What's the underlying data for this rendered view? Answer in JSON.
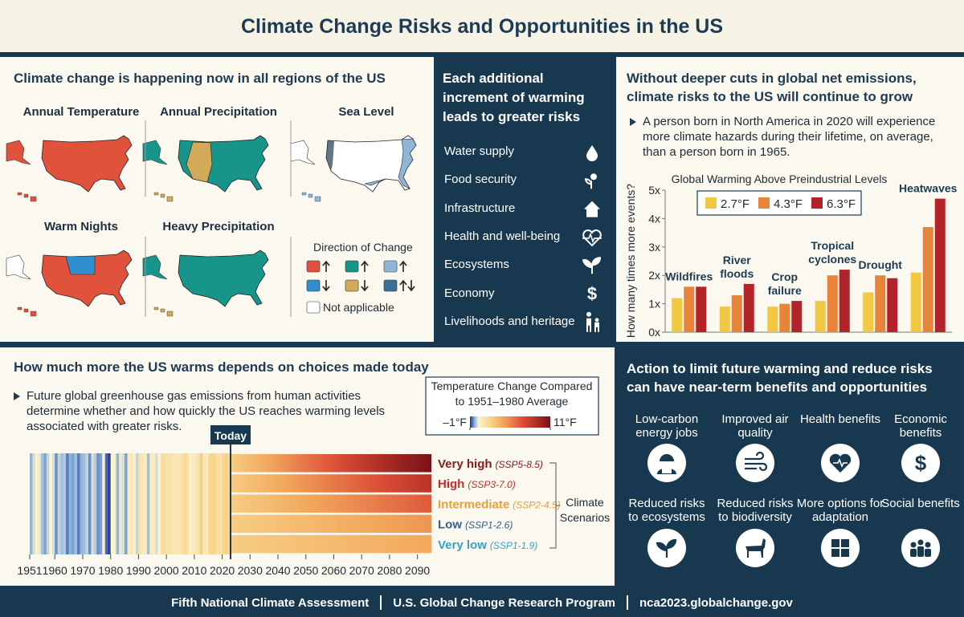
{
  "header": {
    "title": "Climate Change Risks and Opportunities in the US"
  },
  "regions_panel": {
    "heading": "Climate change is happening now in all regions of the US",
    "maps": [
      {
        "title": "Annual Temperature"
      },
      {
        "title": "Annual Precipitation"
      },
      {
        "title": "Sea Level"
      },
      {
        "title": "Warm Nights"
      },
      {
        "title": "Heavy Precipitation"
      }
    ],
    "legend": {
      "title": "Direction of Change",
      "not_applicable": "Not applicable"
    }
  },
  "risks_panel": {
    "heading": "Each additional increment of warming leads to greater risks",
    "items": [
      "Water supply",
      "Food security",
      "Infrastructure",
      "Health and well-being",
      "Ecosystems",
      "Economy",
      "Livelihoods and heritage"
    ]
  },
  "emissions_panel": {
    "heading": "Without deeper cuts in global net emissions, climate risks to the US will continue to grow",
    "bullet": "A person born in North America in 2020 will experience more climate hazards during their lifetime, on average, than a person born in 1965.",
    "chart": {
      "type": "bar",
      "title": "Global Warming Above Preindustrial Levels",
      "y_label": "How many times more events?",
      "categories": [
        "Wildfires",
        "River floods",
        "Crop failure",
        "Tropical cyclones",
        "Drought",
        "Heatwaves"
      ],
      "series": [
        {
          "name": "2.7°F",
          "color": "#f2c843",
          "values": [
            1.2,
            0.9,
            0.9,
            1.1,
            1.4,
            2.1
          ]
        },
        {
          "name": "4.3°F",
          "color": "#e8843a",
          "values": [
            1.6,
            1.3,
            1.0,
            2.0,
            2.0,
            3.7
          ]
        },
        {
          "name": "6.3°F",
          "color": "#b3232a",
          "values": [
            1.6,
            1.7,
            1.1,
            2.2,
            1.9,
            4.7
          ]
        }
      ],
      "ylim": [
        0,
        5
      ],
      "yticks": [
        {
          "value": 0,
          "label": "0x"
        },
        {
          "value": 1,
          "label": "1x"
        },
        {
          "value": 2,
          "label": "2x"
        },
        {
          "value": 3,
          "label": "3x"
        },
        {
          "value": 4,
          "label": "4x"
        },
        {
          "value": 5,
          "label": "5x"
        }
      ]
    }
  },
  "warming_panel": {
    "heading": "How much more the US warms depends on choices made today",
    "bullet": "Future global greenhouse gas emissions from human activities determine whether and how quickly the US reaches warming levels associated with greater risks.",
    "colorbar": {
      "title": "Temperature Change Compared to 1951–1980 Average",
      "ticks": [
        {
          "value": -1,
          "label": "–1°F"
        },
        {
          "value": 11,
          "label": "11°F"
        }
      ],
      "stops": [
        {
          "value": -1,
          "color": "#1b2f8a"
        },
        {
          "value": -0.3,
          "color": "#8db6de"
        },
        {
          "value": 0.3,
          "color": "#fbf3d2"
        },
        {
          "value": 2,
          "color": "#f7d48a"
        },
        {
          "value": 4,
          "color": "#f2a65a"
        },
        {
          "value": 7,
          "color": "#db4a35"
        },
        {
          "value": 11,
          "color": "#7a1016"
        }
      ]
    },
    "strip": {
      "x": [
        1951,
        1952,
        1953,
        1954,
        1955,
        1956,
        1957,
        1958,
        1959,
        1960,
        1961,
        1962,
        1963,
        1964,
        1965,
        1966,
        1967,
        1968,
        1969,
        1970,
        1971,
        1972,
        1973,
        1974,
        1975,
        1976,
        1977,
        1978,
        1979,
        1980,
        1981,
        1982,
        1983,
        1984,
        1985,
        1986,
        1987,
        1988,
        1989,
        1990,
        1991,
        1992,
        1993,
        1994,
        1995,
        1996,
        1997,
        1998,
        1999,
        2000,
        2001,
        2002,
        2003,
        2004,
        2005,
        2006,
        2007,
        2008,
        2009,
        2010,
        2011,
        2012,
        2013,
        2014,
        2015,
        2016,
        2017,
        2018,
        2019,
        2020,
        2021,
        2022
      ],
      "values": [
        -0.3,
        0.1,
        0.4,
        0.2,
        -0.2,
        -0.4,
        0.0,
        0.3,
        0.1,
        -0.5,
        0.0,
        -0.2,
        -0.1,
        -0.6,
        -0.3,
        -0.4,
        -0.2,
        -0.6,
        -0.3,
        -0.2,
        0.0,
        -0.5,
        0.1,
        -0.1,
        -0.5,
        -0.4,
        0.4,
        -0.7,
        -0.9,
        0.3,
        0.6,
        -0.3,
        0.2,
        0.1,
        -0.4,
        0.8,
        1.0,
        0.4,
        0.0,
        1.2,
        0.9,
        0.6,
        -0.2,
        0.8,
        0.7,
        0.1,
        0.3,
        1.6,
        1.4,
        1.2,
        1.3,
        1.0,
        1.0,
        1.0,
        1.3,
        1.7,
        1.4,
        0.6,
        0.7,
        1.0,
        1.3,
        2.2,
        1.0,
        0.9,
        1.9,
        2.0,
        1.9,
        1.5,
        1.3,
        1.9,
        2.1,
        1.8
      ],
      "xlim": [
        1951,
        2095
      ],
      "xticks": [
        1951,
        1960,
        1970,
        1980,
        1990,
        2000,
        2010,
        2020,
        2030,
        2040,
        2050,
        2060,
        2070,
        2080,
        2090
      ]
    },
    "today": {
      "label": "Today",
      "year": 2023
    },
    "scenarios_label": "Climate Scenarios",
    "scenarios": [
      {
        "name": "Very high",
        "code": "(SSP5-8.5)",
        "color": "#8b1a1a",
        "start_value": 2.3,
        "end_value": 11
      },
      {
        "name": "High",
        "code": "(SSP3-7.0)",
        "color": "#c0302b",
        "start_value": 2.3,
        "end_value": 8.5
      },
      {
        "name": "Intermediate",
        "code": "(SSP2-4.5)",
        "color": "#e8a03a",
        "start_value": 2.3,
        "end_value": 6.5
      },
      {
        "name": "Low",
        "code": "(SSP1-2.6)",
        "color": "#3b5a8c",
        "start_value": 2.3,
        "end_value": 4.6
      },
      {
        "name": "Very low",
        "code": "(SSP1-1.9)",
        "color": "#35a3c6",
        "start_value": 2.3,
        "end_value": 3.9
      }
    ]
  },
  "benefits_panel": {
    "heading": "Action to limit future warming and reduce risks can have near-term benefits and opportunities",
    "items": [
      "Low-carbon energy jobs",
      "Improved air quality",
      "Health benefits",
      "Economic benefits",
      "Reduced risks to ecosystems",
      "Reduced risks to biodiversity",
      "More options for adaptation",
      "Social benefits"
    ]
  },
  "footer": {
    "items": [
      "Fifth National Climate Assessment",
      "U.S. Global Change Research Program",
      "nca2023.globalchange.gov"
    ]
  }
}
